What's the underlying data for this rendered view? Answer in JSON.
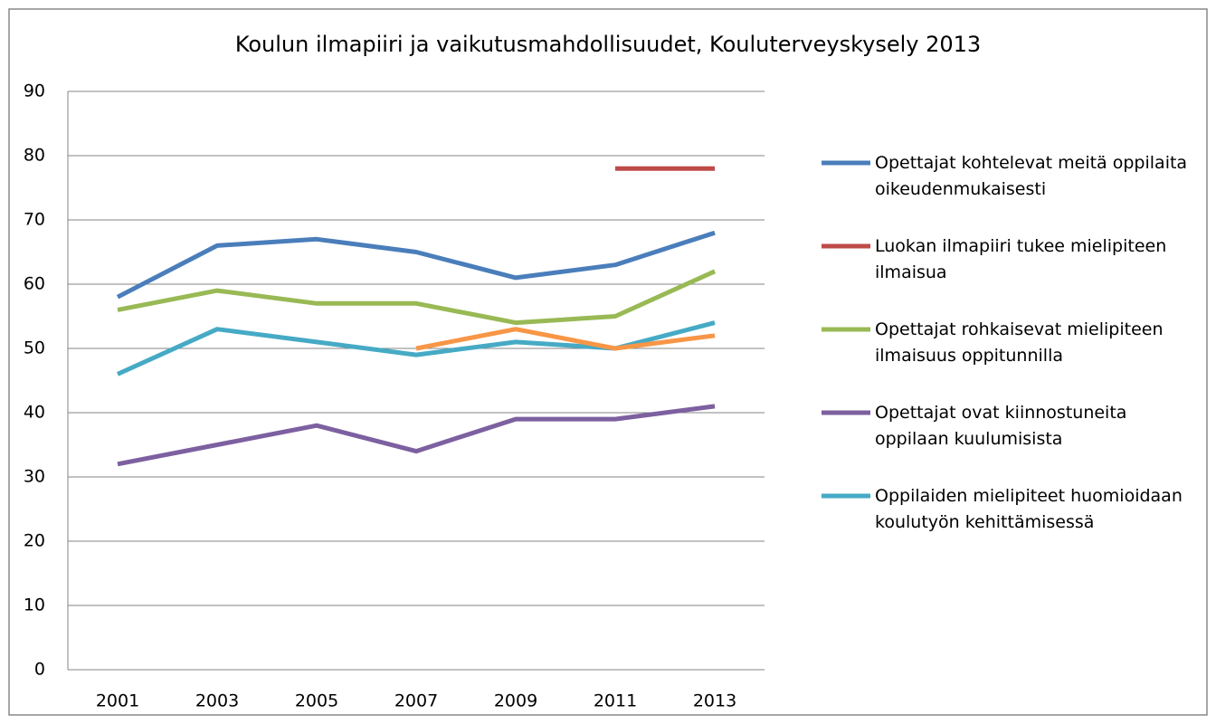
{
  "chart_data": {
    "type": "line",
    "title": "Koulun ilmapiiri ja vaikutusmahdollisuudet, Kouluterveyskysely 2013",
    "categories": [
      "2001",
      "2003",
      "2005",
      "2007",
      "2009",
      "2011",
      "2013"
    ],
    "ylim": [
      0,
      90
    ],
    "yticks": [
      0,
      10,
      20,
      30,
      40,
      50,
      60,
      70,
      80,
      90
    ],
    "grid": true,
    "legend": "right",
    "series": [
      {
        "name": "Opettajat kohtelevat meitä oppilaita oikeudenmukaisesti",
        "color": "#4a7ebb",
        "values": [
          58,
          66,
          67,
          65,
          61,
          63,
          68
        ]
      },
      {
        "name": "Luokan ilmapiiri tukee mielipiteen ilmaisua",
        "color": "#be4b48",
        "values": [
          null,
          null,
          null,
          null,
          null,
          78,
          78
        ]
      },
      {
        "name": "Opettajat rohkaisevat mielipiteen ilmaisuus oppitunnilla",
        "color": "#98b954",
        "values": [
          56,
          59,
          57,
          57,
          54,
          55,
          62
        ]
      },
      {
        "name": "Opettajat ovat kiinnostuneita oppilaan kuulumisista",
        "color": "#7d60a0",
        "values": [
          32,
          35,
          38,
          34,
          39,
          39,
          41
        ]
      },
      {
        "name": "Oppilaiden mielipiteet huomioidaan koulutyön kehittämisessä",
        "color": "#46aac5",
        "values": [
          46,
          53,
          51,
          49,
          51,
          50,
          54
        ]
      },
      {
        "color": "#f79646",
        "values": [
          null,
          null,
          null,
          50,
          53,
          50,
          52
        ]
      }
    ]
  }
}
